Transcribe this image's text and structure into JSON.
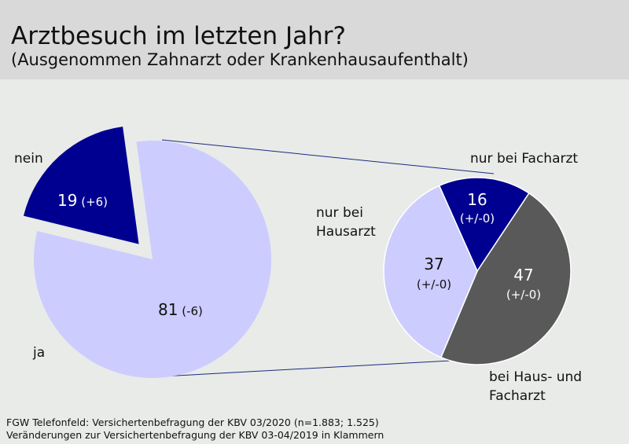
{
  "header": {
    "title": "Arztbesuch im letzten Jahr?",
    "subtitle": "(Ausgenommen Zahnarzt oder Krankenhausaufenthalt)"
  },
  "footer": {
    "line1": "FGW Telefonfeld: Versichertenbefragung der KBV 03/2020 (n=1.883; 1.525)",
    "line2": "Veränderungen zur Versichertenbefragung der KBV 03-04/2019 in Klammern"
  },
  "colors": {
    "light_lavender": "#ccccff",
    "dark_blue": "#000090",
    "dark_gray": "#595959",
    "header_bg": "#d9d9d9",
    "page_bg": "#e8ebe8",
    "connector": "#1a2a80"
  },
  "chart_data": [
    {
      "type": "pie",
      "slices": [
        {
          "label": "nein",
          "value": 19,
          "change": "(+6)",
          "color": "#000090",
          "exploded": true
        },
        {
          "label": "ja",
          "value": 81,
          "change": "(-6)",
          "color": "#ccccff",
          "exploded": false
        }
      ]
    },
    {
      "type": "pie",
      "breakdown_of": "ja",
      "slices": [
        {
          "label": "nur bei Facharzt",
          "value": 16,
          "change": "(+/-0)",
          "color": "#000090"
        },
        {
          "label": "bei Haus- und Facharzt",
          "value": 47,
          "change": "(+/-0)",
          "color": "#595959"
        },
        {
          "label": "nur bei Hausarzt",
          "value": 37,
          "change": "(+/-0)",
          "color": "#ccccff"
        }
      ]
    }
  ]
}
